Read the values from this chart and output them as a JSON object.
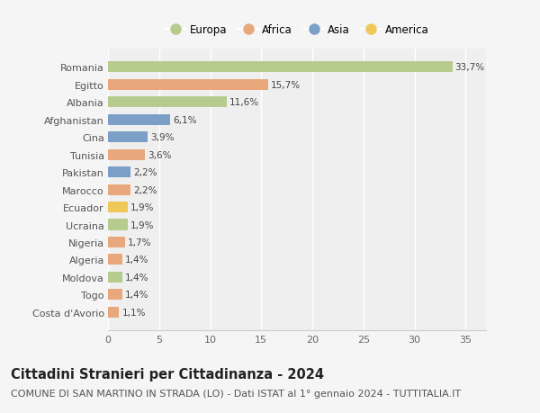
{
  "countries": [
    "Romania",
    "Egitto",
    "Albania",
    "Afghanistan",
    "Cina",
    "Tunisia",
    "Pakistan",
    "Marocco",
    "Ecuador",
    "Ucraina",
    "Nigeria",
    "Algeria",
    "Moldova",
    "Togo",
    "Costa d'Avorio"
  ],
  "values": [
    33.7,
    15.7,
    11.6,
    6.1,
    3.9,
    3.6,
    2.2,
    2.2,
    1.9,
    1.9,
    1.7,
    1.4,
    1.4,
    1.4,
    1.1
  ],
  "labels": [
    "33,7%",
    "15,7%",
    "11,6%",
    "6,1%",
    "3,9%",
    "3,6%",
    "2,2%",
    "2,2%",
    "1,9%",
    "1,9%",
    "1,7%",
    "1,4%",
    "1,4%",
    "1,4%",
    "1,1%"
  ],
  "continents": [
    "Europa",
    "Africa",
    "Europa",
    "Asia",
    "Asia",
    "Africa",
    "Asia",
    "Africa",
    "America",
    "Europa",
    "Africa",
    "Africa",
    "Europa",
    "Africa",
    "Africa"
  ],
  "colors": {
    "Europa": "#b5cc8e",
    "Africa": "#e8a87c",
    "Asia": "#7b9fc7",
    "America": "#f0c85a"
  },
  "legend_order": [
    "Europa",
    "Africa",
    "Asia",
    "America"
  ],
  "title": "Cittadini Stranieri per Cittadinanza - 2024",
  "subtitle": "COMUNE DI SAN MARTINO IN STRADA (LO) - Dati ISTAT al 1° gennaio 2024 - TUTTITALIA.IT",
  "xlim": [
    0,
    37
  ],
  "xticks": [
    0,
    5,
    10,
    15,
    20,
    25,
    30,
    35
  ],
  "background_color": "#f5f5f5",
  "plot_background": "#efefef",
  "grid_color": "#ffffff",
  "title_fontsize": 10.5,
  "subtitle_fontsize": 8,
  "bar_height": 0.62
}
